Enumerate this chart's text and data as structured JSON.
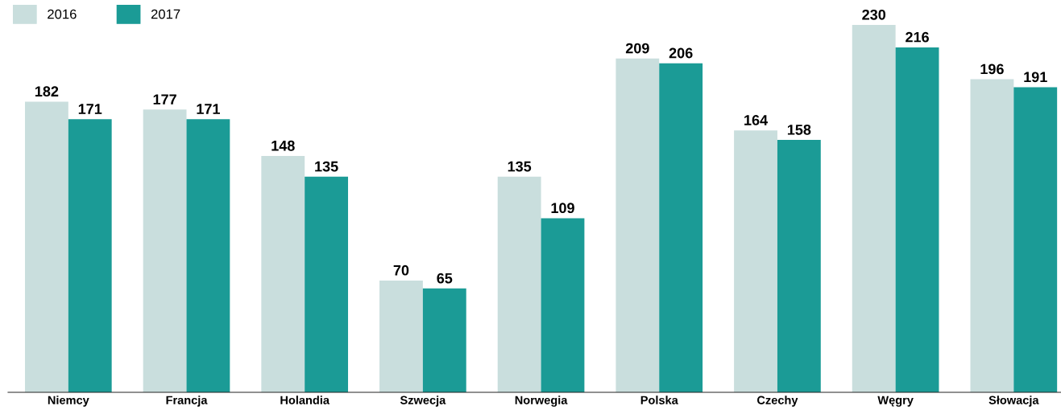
{
  "chart_data": {
    "type": "bar",
    "categories": [
      "Niemcy",
      "Francja",
      "Holandia",
      "Szwecja",
      "Norwegia",
      "Polska",
      "Czechy",
      "Węgry",
      "Słowacja"
    ],
    "series": [
      {
        "name": "2016",
        "color": "#c9dedd",
        "values": [
          182,
          177,
          148,
          70,
          135,
          209,
          164,
          230,
          196
        ]
      },
      {
        "name": "2017",
        "color": "#1b9b96",
        "values": [
          171,
          171,
          135,
          65,
          109,
          206,
          158,
          216,
          191
        ]
      }
    ],
    "data_labels": true,
    "legend": "top left",
    "grid": false
  }
}
